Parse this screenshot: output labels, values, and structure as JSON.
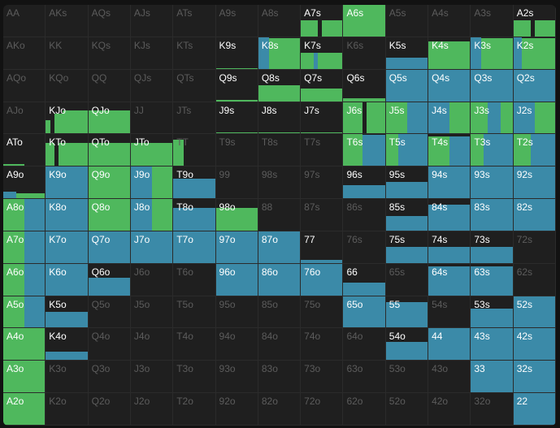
{
  "colors": {
    "raise": "#4fb85d",
    "call": "#3b8aa8",
    "empty": "#1f1f1f"
  },
  "hands": [
    [
      "AA",
      "AKs",
      "AQs",
      "AJs",
      "ATs",
      "A9s",
      "A8s",
      "A7s",
      "A6s",
      "A5s",
      "A4s",
      "A3s",
      "A2s"
    ],
    [
      "AKo",
      "KK",
      "KQs",
      "KJs",
      "KTs",
      "K9s",
      "K8s",
      "K7s",
      "K6s",
      "K5s",
      "K4s",
      "K3s",
      "K2s"
    ],
    [
      "AQo",
      "KQo",
      "QQ",
      "QJs",
      "QTs",
      "Q9s",
      "Q8s",
      "Q7s",
      "Q6s",
      "Q5s",
      "Q4s",
      "Q3s",
      "Q2s"
    ],
    [
      "AJo",
      "KJo",
      "QJo",
      "JJ",
      "JTs",
      "J9s",
      "J8s",
      "J7s",
      "J6s",
      "J5s",
      "J4s",
      "J3s",
      "J2s"
    ],
    [
      "ATo",
      "KTo",
      "QTo",
      "JTo",
      "TT",
      "T9s",
      "T8s",
      "T7s",
      "T6s",
      "T5s",
      "T4s",
      "T3s",
      "T2s"
    ],
    [
      "A9o",
      "K9o",
      "Q9o",
      "J9o",
      "T9o",
      "99",
      "98s",
      "97s",
      "96s",
      "95s",
      "94s",
      "93s",
      "92s"
    ],
    [
      "A8o",
      "K8o",
      "Q8o",
      "J8o",
      "T8o",
      "98o",
      "88",
      "87s",
      "86s",
      "85s",
      "84s",
      "83s",
      "82s"
    ],
    [
      "A7o",
      "K7o",
      "Q7o",
      "J7o",
      "T7o",
      "97o",
      "87o",
      "77",
      "76s",
      "75s",
      "74s",
      "73s",
      "72s"
    ],
    [
      "A6o",
      "K6o",
      "Q6o",
      "J6o",
      "T6o",
      "96o",
      "86o",
      "76o",
      "66",
      "65s",
      "64s",
      "63s",
      "62s"
    ],
    [
      "A5o",
      "K5o",
      "Q5o",
      "J5o",
      "T5o",
      "95o",
      "85o",
      "75o",
      "65o",
      "55",
      "54s",
      "53s",
      "52s"
    ],
    [
      "A4o",
      "K4o",
      "Q4o",
      "J4o",
      "T4o",
      "94o",
      "84o",
      "74o",
      "64o",
      "54o",
      "44",
      "43s",
      "42s"
    ],
    [
      "A3o",
      "K3o",
      "Q3o",
      "J3o",
      "T3o",
      "93o",
      "83o",
      "73o",
      "63o",
      "53o",
      "43o",
      "33",
      "32s"
    ],
    [
      "A2o",
      "K2o",
      "Q2o",
      "J2o",
      "T2o",
      "92o",
      "82o",
      "72o",
      "62o",
      "52o",
      "42o",
      "32o",
      "22"
    ]
  ],
  "active": [
    [
      0,
      0,
      0,
      0,
      0,
      0,
      0,
      1,
      1,
      0,
      0,
      0,
      1
    ],
    [
      0,
      0,
      0,
      0,
      0,
      1,
      1,
      1,
      0,
      1,
      1,
      1,
      1
    ],
    [
      0,
      0,
      0,
      0,
      0,
      1,
      1,
      1,
      1,
      1,
      1,
      1,
      1
    ],
    [
      0,
      1,
      1,
      0,
      0,
      1,
      1,
      1,
      1,
      1,
      1,
      1,
      1
    ],
    [
      1,
      1,
      1,
      1,
      0,
      0,
      0,
      0,
      1,
      1,
      1,
      1,
      1
    ],
    [
      1,
      1,
      1,
      1,
      1,
      0,
      0,
      0,
      1,
      1,
      1,
      1,
      1
    ],
    [
      1,
      1,
      1,
      1,
      1,
      1,
      0,
      0,
      0,
      1,
      1,
      1,
      1
    ],
    [
      1,
      1,
      1,
      1,
      1,
      1,
      1,
      1,
      0,
      1,
      1,
      1,
      0
    ],
    [
      1,
      1,
      1,
      0,
      0,
      1,
      1,
      1,
      1,
      0,
      1,
      1,
      0
    ],
    [
      1,
      1,
      0,
      0,
      0,
      0,
      0,
      0,
      1,
      1,
      0,
      1,
      1
    ],
    [
      1,
      1,
      0,
      0,
      0,
      0,
      0,
      0,
      0,
      1,
      1,
      1,
      1
    ],
    [
      1,
      0,
      0,
      0,
      0,
      0,
      0,
      0,
      0,
      0,
      0,
      1,
      1
    ],
    [
      1,
      0,
      0,
      0,
      0,
      0,
      0,
      0,
      0,
      0,
      0,
      0,
      1
    ]
  ],
  "frequencies": {
    "0,7": [
      [
        "g",
        0.4,
        0.5
      ],
      [
        "n",
        0.1,
        0
      ],
      [
        "g",
        0.5,
        0.5
      ]
    ],
    "0,8": [
      [
        "g",
        1,
        1
      ]
    ],
    "0,12": [
      [
        "g",
        0.4,
        0.5
      ],
      [
        "n",
        0.1,
        0
      ],
      [
        "g",
        0.5,
        0.5
      ]
    ],
    "1,5": [
      [
        "g",
        1,
        0.02
      ]
    ],
    "1,6": [
      [
        "b",
        0.25,
        1
      ],
      [
        "g",
        0.75,
        0.95
      ]
    ],
    "1,7": [
      [
        "g",
        0.3,
        0.5
      ],
      [
        "b",
        0.1,
        0.5
      ],
      [
        "g",
        0.6,
        0.5
      ]
    ],
    "1,9": [
      [
        "b",
        1,
        0.35
      ]
    ],
    "1,10": [
      [
        "g",
        1,
        0.85
      ]
    ],
    "1,11": [
      [
        "b",
        0.25,
        1
      ],
      [
        "g",
        0.75,
        0.95
      ]
    ],
    "1,12": [
      [
        "b",
        0.2,
        1
      ],
      [
        "g",
        0.8,
        0.95
      ]
    ],
    "2,5": [
      [
        "g",
        1,
        0.05
      ]
    ],
    "2,6": [
      [
        "g",
        1,
        0.5
      ]
    ],
    "2,7": [
      [
        "g",
        1,
        0.4
      ]
    ],
    "2,8": [
      [
        "g",
        1,
        0.1
      ]
    ],
    "2,9": [
      [
        "b",
        1,
        1
      ]
    ],
    "2,10": [
      [
        "b",
        1,
        1
      ]
    ],
    "2,11": [
      [
        "b",
        1,
        1
      ]
    ],
    "2,12": [
      [
        "b",
        1,
        1
      ]
    ],
    "3,1": [
      [
        "g",
        0.1,
        0.4
      ],
      [
        "n",
        0.1,
        0
      ],
      [
        "g",
        0.2,
        0.6
      ],
      [
        "g",
        0.6,
        0.7
      ]
    ],
    "3,2": [
      [
        "g",
        0.3,
        0.7
      ],
      [
        "g",
        0.7,
        0.7
      ]
    ],
    "3,5": [
      [
        "g",
        1,
        0.03
      ]
    ],
    "3,6": [
      [
        "g",
        1,
        0.03
      ]
    ],
    "3,7": [
      [
        "g",
        1,
        0.03
      ]
    ],
    "3,8": [
      [
        "g",
        0.45,
        1
      ],
      [
        "n",
        0.1,
        0
      ],
      [
        "g",
        0.45,
        1
      ]
    ],
    "3,9": [
      [
        "g",
        0.5,
        1
      ],
      [
        "b",
        0.5,
        1
      ]
    ],
    "3,10": [
      [
        "b",
        0.5,
        1
      ],
      [
        "g",
        0.5,
        1
      ]
    ],
    "3,11": [
      [
        "g",
        0.4,
        1
      ],
      [
        "b",
        0.3,
        1
      ],
      [
        "g",
        0.3,
        1
      ]
    ],
    "3,12": [
      [
        "b",
        0.5,
        1
      ],
      [
        "g",
        0.5,
        1
      ]
    ],
    "4,0": [
      [
        "g",
        0.5,
        0.05
      ]
    ],
    "4,1": [
      [
        "g",
        0.2,
        0.7
      ],
      [
        "n",
        0.1,
        0
      ],
      [
        "g",
        0.2,
        0.7
      ],
      [
        "g",
        0.5,
        0.7
      ]
    ],
    "4,2": [
      [
        "g",
        0.3,
        0.7
      ],
      [
        "g",
        0.3,
        0.7
      ],
      [
        "g",
        0.4,
        0.7
      ]
    ],
    "4,3": [
      [
        "g",
        0.3,
        0.7
      ],
      [
        "g",
        0.3,
        0.7
      ],
      [
        "g",
        0.4,
        0.7
      ]
    ],
    "4,4": [
      [
        "g",
        0.25,
        0.8
      ]
    ],
    "4,8": [
      [
        "g",
        0.45,
        1
      ],
      [
        "b",
        0.55,
        0.95
      ]
    ],
    "4,9": [
      [
        "g",
        0.3,
        1
      ],
      [
        "b",
        0.7,
        1
      ]
    ],
    "4,10": [
      [
        "g",
        0.5,
        0.9
      ],
      [
        "b",
        0.5,
        0.9
      ]
    ],
    "4,11": [
      [
        "g",
        0.3,
        1
      ],
      [
        "b",
        0.7,
        1
      ]
    ],
    "4,12": [
      [
        "g",
        0.4,
        1
      ],
      [
        "b",
        0.6,
        1
      ]
    ],
    "5,0": [
      [
        "b",
        0.3,
        0.2
      ],
      [
        "g",
        0.7,
        0.15
      ]
    ],
    "5,1": [
      [
        "b",
        1,
        1
      ]
    ],
    "5,2": [
      [
        "g",
        1,
        1
      ]
    ],
    "5,3": [
      [
        "b",
        0.5,
        1
      ],
      [
        "g",
        0.5,
        1
      ]
    ],
    "5,4": [
      [
        "b",
        1,
        0.6
      ]
    ],
    "5,8": [
      [
        "b",
        1,
        0.4
      ]
    ],
    "5,9": [
      [
        "b",
        1,
        0.5
      ]
    ],
    "5,10": [
      [
        "b",
        1,
        1
      ]
    ],
    "5,11": [
      [
        "b",
        1,
        1
      ]
    ],
    "5,12": [
      [
        "b",
        1,
        1
      ]
    ],
    "6,0": [
      [
        "g",
        0.5,
        1
      ],
      [
        "b",
        0.5,
        1
      ]
    ],
    "6,1": [
      [
        "b",
        1,
        1
      ]
    ],
    "6,2": [
      [
        "g",
        1,
        1
      ]
    ],
    "6,3": [
      [
        "b",
        0.5,
        1
      ],
      [
        "g",
        0.5,
        1
      ]
    ],
    "6,4": [
      [
        "b",
        1,
        0.7
      ]
    ],
    "6,5": [
      [
        "g",
        1,
        0.7
      ]
    ],
    "6,9": [
      [
        "b",
        1,
        0.45
      ]
    ],
    "6,10": [
      [
        "b",
        1,
        0.8
      ]
    ],
    "6,11": [
      [
        "b",
        1,
        1
      ]
    ],
    "6,12": [
      [
        "b",
        1,
        1
      ]
    ],
    "7,0": [
      [
        "g",
        0.5,
        1
      ],
      [
        "b",
        0.5,
        1
      ]
    ],
    "7,1": [
      [
        "b",
        1,
        1
      ]
    ],
    "7,2": [
      [
        "b",
        1,
        1
      ]
    ],
    "7,3": [
      [
        "b",
        1,
        1
      ]
    ],
    "7,4": [
      [
        "b",
        1,
        1
      ]
    ],
    "7,5": [
      [
        "b",
        1,
        1
      ]
    ],
    "7,6": [
      [
        "b",
        1,
        1
      ]
    ],
    "7,7": [
      [
        "b",
        1,
        0.1
      ]
    ],
    "7,9": [
      [
        "b",
        1,
        0.5
      ]
    ],
    "7,10": [
      [
        "b",
        1,
        0.5
      ]
    ],
    "7,11": [
      [
        "b",
        1,
        0.5
      ]
    ],
    "8,0": [
      [
        "g",
        0.5,
        1
      ],
      [
        "b",
        0.5,
        1
      ]
    ],
    "8,1": [
      [
        "b",
        1,
        1
      ]
    ],
    "8,2": [
      [
        "b",
        1,
        0.55
      ]
    ],
    "8,5": [
      [
        "b",
        1,
        1
      ]
    ],
    "8,6": [
      [
        "b",
        1,
        1
      ]
    ],
    "8,7": [
      [
        "b",
        1,
        1
      ]
    ],
    "8,8": [
      [
        "b",
        1,
        0.4
      ]
    ],
    "8,10": [
      [
        "b",
        1,
        0.9
      ]
    ],
    "8,11": [
      [
        "b",
        1,
        0.9
      ]
    ],
    "9,0": [
      [
        "g",
        0.5,
        1
      ],
      [
        "b",
        0.5,
        1
      ]
    ],
    "9,1": [
      [
        "b",
        1,
        0.5
      ]
    ],
    "9,8": [
      [
        "b",
        1,
        1
      ]
    ],
    "9,9": [
      [
        "b",
        1,
        0.8
      ]
    ],
    "9,11": [
      [
        "b",
        1,
        0.6
      ]
    ],
    "9,12": [
      [
        "b",
        1,
        1
      ]
    ],
    "10,0": [
      [
        "g",
        1,
        1
      ]
    ],
    "10,1": [
      [
        "b",
        1,
        0.25
      ]
    ],
    "10,9": [
      [
        "b",
        1,
        0.55
      ]
    ],
    "10,10": [
      [
        "b",
        1,
        1
      ]
    ],
    "10,11": [
      [
        "b",
        1,
        1
      ]
    ],
    "10,12": [
      [
        "b",
        1,
        1
      ]
    ],
    "11,0": [
      [
        "g",
        1,
        1
      ]
    ],
    "11,11": [
      [
        "b",
        1,
        1
      ]
    ],
    "11,12": [
      [
        "b",
        1,
        1
      ]
    ],
    "12,0": [
      [
        "g",
        1,
        1
      ]
    ],
    "12,12": [
      [
        "b",
        1,
        1
      ]
    ]
  }
}
